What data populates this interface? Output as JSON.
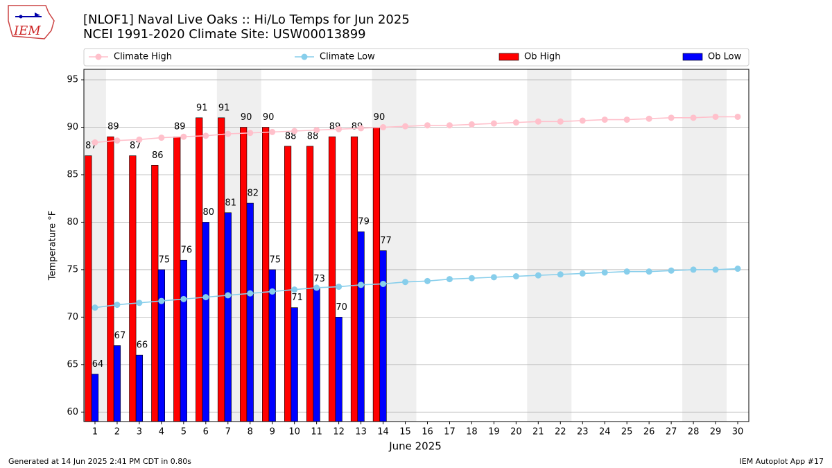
{
  "chart_data": {
    "type": "bar",
    "title": "[NLOF1] Naval Live Oaks :: Hi/Lo Temps for Jun 2025",
    "subtitle": "NCEI 1991-2020 Climate Site: USW00013899",
    "xlabel": "June 2025",
    "ylabel": "Temperature °F",
    "logo_text": "IEM",
    "footer_left": "Generated at 14 Jun 2025 2:41 PM CDT in 0.80s",
    "footer_right": "IEM Autoplot App #17",
    "x": [
      1,
      2,
      3,
      4,
      5,
      6,
      7,
      8,
      9,
      10,
      11,
      12,
      13,
      14,
      15,
      16,
      17,
      18,
      19,
      20,
      21,
      22,
      23,
      24,
      25,
      26,
      27,
      28,
      29,
      30
    ],
    "xlim": [
      0.5,
      30.5
    ],
    "xticks": [
      1,
      2,
      3,
      4,
      5,
      6,
      7,
      8,
      9,
      10,
      11,
      12,
      13,
      14,
      15,
      16,
      17,
      18,
      19,
      20,
      21,
      22,
      23,
      24,
      25,
      26,
      27,
      28,
      29,
      30
    ],
    "ylim": [
      59,
      96.1
    ],
    "yticks": [
      60,
      65,
      70,
      75,
      80,
      85,
      90,
      95
    ],
    "grid": true,
    "legend": "top",
    "series": [
      {
        "name": "Climate High",
        "type": "line",
        "color": "#ffc0cb",
        "values": [
          88.4,
          88.6,
          88.7,
          88.9,
          89.0,
          89.1,
          89.3,
          89.4,
          89.5,
          89.6,
          89.7,
          89.8,
          89.9,
          90.0,
          90.1,
          90.2,
          90.2,
          90.3,
          90.4,
          90.5,
          90.6,
          90.6,
          90.7,
          90.8,
          90.8,
          90.9,
          91.0,
          91.0,
          91.1,
          91.1
        ]
      },
      {
        "name": "Climate Low",
        "type": "line",
        "color": "#87ceeb",
        "values": [
          71.0,
          71.3,
          71.5,
          71.7,
          71.9,
          72.1,
          72.3,
          72.5,
          72.7,
          72.9,
          73.1,
          73.2,
          73.4,
          73.5,
          73.7,
          73.8,
          74.0,
          74.1,
          74.2,
          74.3,
          74.4,
          74.5,
          74.6,
          74.7,
          74.8,
          74.8,
          74.9,
          75.0,
          75.0,
          75.1
        ]
      },
      {
        "name": "Ob High",
        "type": "bar",
        "color": "#ff0000",
        "values": [
          87,
          89,
          87,
          86,
          89,
          91,
          91,
          90,
          90,
          88,
          88,
          89,
          89,
          90,
          null,
          null,
          null,
          null,
          null,
          null,
          null,
          null,
          null,
          null,
          null,
          null,
          null,
          null,
          null,
          null
        ]
      },
      {
        "name": "Ob Low",
        "type": "bar",
        "color": "#0000ff",
        "values": [
          64,
          67,
          66,
          75,
          76,
          80,
          81,
          82,
          75,
          71,
          73,
          70,
          79,
          77,
          null,
          null,
          null,
          null,
          null,
          null,
          null,
          null,
          null,
          null,
          null,
          null,
          null,
          null,
          null,
          null
        ]
      }
    ]
  }
}
